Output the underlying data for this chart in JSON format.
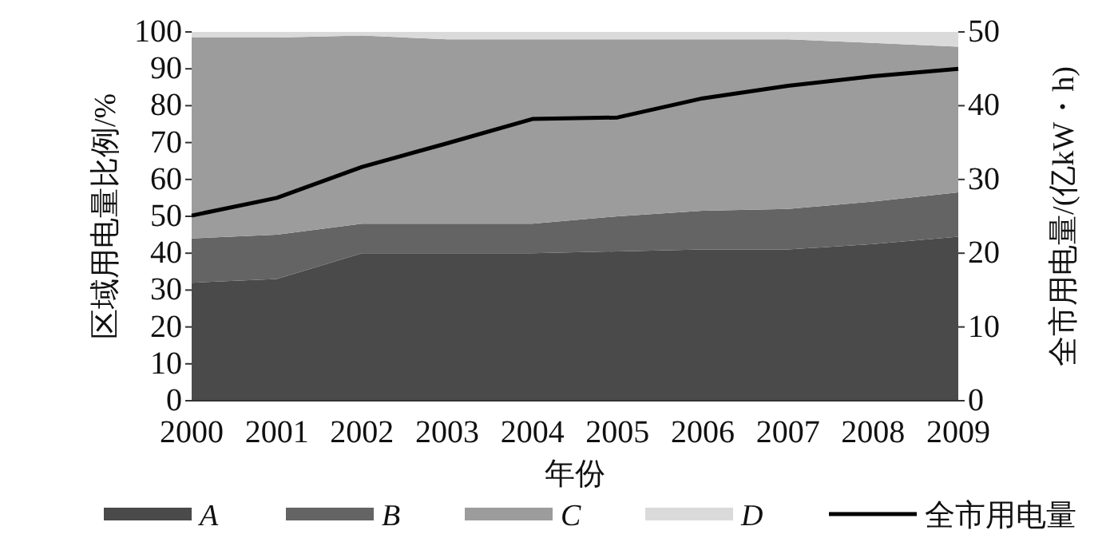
{
  "chart_data": {
    "type": "area",
    "stacked": true,
    "xlabel": "年份",
    "ylabel": "区域用电量比例/%",
    "y2label": "全市用电量/(亿kW・h)",
    "categories": [
      "2000",
      "2001",
      "2002",
      "2003",
      "2004",
      "2005",
      "2006",
      "2007",
      "2008",
      "2009"
    ],
    "series": [
      {
        "name": "A",
        "color": "#4a4a4a",
        "values": [
          32,
          33,
          40,
          40,
          40,
          40.5,
          41,
          41,
          42.5,
          44.5
        ]
      },
      {
        "name": "B",
        "color": "#646464",
        "values": [
          12,
          12,
          8,
          8,
          8,
          9.5,
          10.5,
          11,
          11.5,
          12
        ]
      },
      {
        "name": "C",
        "color": "#9c9c9c",
        "values": [
          54.5,
          53.5,
          51,
          50,
          50,
          48,
          46.5,
          46,
          43,
          39.5
        ]
      },
      {
        "name": "D",
        "color": "#dadada",
        "values": [
          1.5,
          1.5,
          1,
          2,
          2,
          2,
          2,
          2,
          3,
          4
        ]
      },
      {
        "name": "全市用电量",
        "type": "line",
        "axis": "y2",
        "color": "#000000",
        "values": [
          25.1,
          27.5,
          31.7,
          34.9,
          38.2,
          38.4,
          41,
          42.7,
          44,
          45
        ]
      }
    ],
    "ylim": [
      0,
      100
    ],
    "yticks": [
      0,
      10,
      20,
      30,
      40,
      50,
      60,
      70,
      80,
      90,
      100
    ],
    "y2lim": [
      0,
      50
    ],
    "y2ticks": [
      0,
      10,
      20,
      30,
      40,
      50
    ],
    "grid": false,
    "legend": "bottom",
    "line_style": "solid",
    "marker": "none"
  }
}
